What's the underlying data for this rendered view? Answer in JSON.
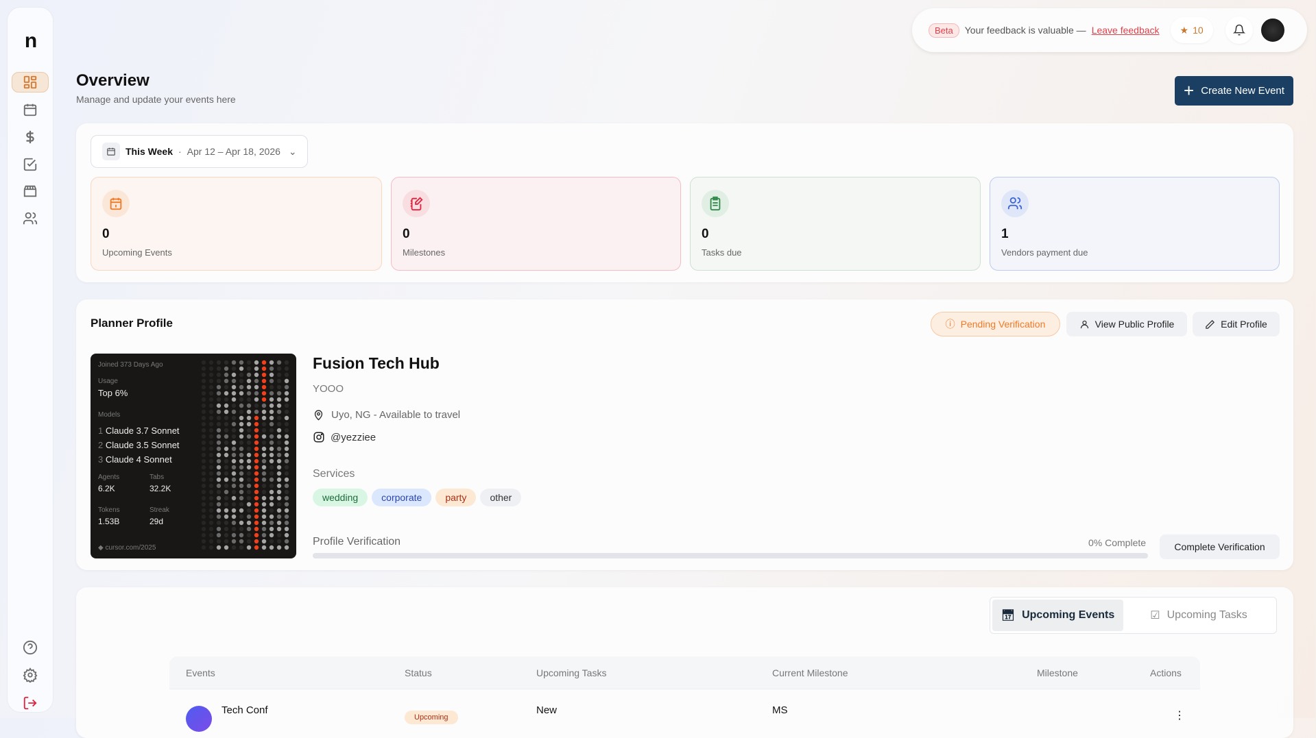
{
  "sidebar": {
    "logo": "n",
    "items": [
      {
        "icon": "dashboard-icon",
        "active": true
      },
      {
        "icon": "calendar-icon"
      },
      {
        "icon": "dollar-icon"
      },
      {
        "icon": "checkbox-icon"
      },
      {
        "icon": "store-icon"
      },
      {
        "icon": "users-icon"
      }
    ],
    "bottom": [
      {
        "icon": "help-icon"
      },
      {
        "icon": "gear-icon"
      },
      {
        "icon": "logout-icon"
      }
    ]
  },
  "topbar": {
    "beta": "Beta",
    "feedback_text": "Your feedback is valuable —",
    "feedback_link": "Leave feedback",
    "stars": "10"
  },
  "header": {
    "title": "Overview",
    "subtitle": "Manage and update your events here",
    "create_label": "Create New Event"
  },
  "date_range": {
    "label": "This Week",
    "separator": "·",
    "range": "Apr 12 – Apr 18, 2026"
  },
  "stats": [
    {
      "value": "0",
      "label": "Upcoming Events",
      "color": "#f07a25"
    },
    {
      "value": "0",
      "label": "Milestones",
      "color": "#e0243f"
    },
    {
      "value": "0",
      "label": "Tasks due",
      "color": "#2f8a4a"
    },
    {
      "value": "1",
      "label": "Vendors payment due",
      "color": "#3b64d6"
    }
  ],
  "profile": {
    "section_title": "Planner Profile",
    "status": "Pending Verification",
    "view_label": "View Public Profile",
    "edit_label": "Edit Profile",
    "name": "Fusion Tech Hub",
    "tagline": "YOOO",
    "location": "Uyo, NG - Available to travel",
    "instagram": "@yezziee",
    "services_label": "Services",
    "services": [
      "wedding",
      "corporate",
      "party",
      "other"
    ],
    "verification_label": "Profile Verification",
    "verification_progress": "0% Complete",
    "verification_percent": 0,
    "complete_label": "Complete Verification",
    "image": {
      "joined": "Joined 373 Days Ago",
      "usage_label": "Usage",
      "usage": "Top 6%",
      "models_label": "Models",
      "models": [
        "Claude 3.7 Sonnet",
        "Claude 3.5 Sonnet",
        "Claude 4 Sonnet"
      ],
      "agents_label": "Agents",
      "agents": "6.2K",
      "tabs_label": "Tabs",
      "tabs": "32.2K",
      "tokens_label": "Tokens",
      "tokens": "1.53B",
      "streak_label": "Streak",
      "streak": "29d",
      "footer": "cursor.com/2025"
    }
  },
  "events": {
    "tabs": [
      "Upcoming Events",
      "Upcoming Tasks"
    ],
    "columns": [
      "Events",
      "Status",
      "Upcoming Tasks",
      "Current Milestone",
      "Milestone",
      "Actions"
    ],
    "rows": [
      {
        "name": "Tech Conf",
        "status": "Upcoming",
        "task": "New",
        "milestone": "MS"
      }
    ]
  }
}
